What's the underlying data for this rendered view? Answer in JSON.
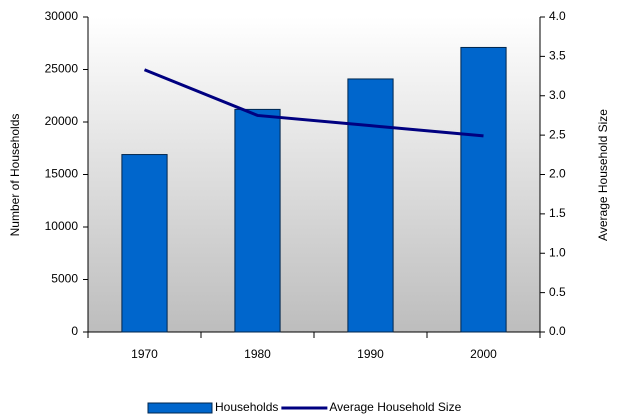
{
  "chart_data": {
    "type": "bar",
    "categories": [
      "1970",
      "1980",
      "1990",
      "2000"
    ],
    "series": [
      {
        "name": "Households",
        "color": "#0066cc",
        "values": [
          16900,
          21200,
          24100,
          27100
        ]
      },
      {
        "name": "Average Household Size",
        "color": "#000080",
        "axis": "y2",
        "values": [
          3.33,
          2.75,
          2.62,
          2.49
        ]
      }
    ],
    "y_label": "Number of Households",
    "y2_label": "Average Household Size",
    "ylim": [
      0,
      30000
    ],
    "yticks": [
      0,
      5000,
      10000,
      15000,
      20000,
      25000,
      30000
    ],
    "y2lim": [
      0,
      4
    ],
    "y2ticks": [
      {
        "value": 0,
        "label": "0.0"
      },
      0.5,
      {
        "value": 1,
        "label": "1.0"
      },
      1.5,
      {
        "value": 2,
        "label": "2.0"
      },
      2.5,
      {
        "value": 3,
        "label": "3.0"
      },
      3.5,
      {
        "value": 4,
        "label": "4.0"
      }
    ],
    "legend": "bottom"
  }
}
